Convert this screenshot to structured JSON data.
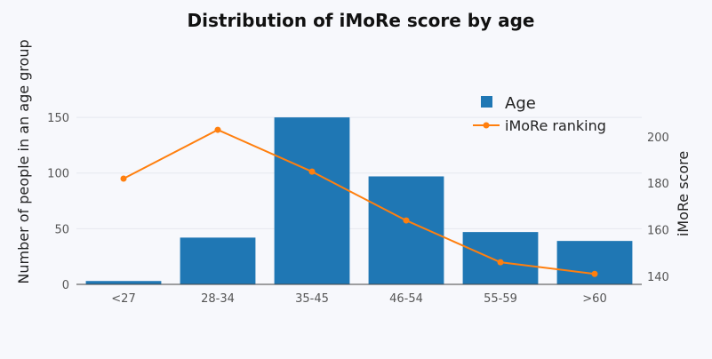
{
  "chart_data": {
    "type": "bar",
    "title": "Distribution of iMoRe score by age",
    "categories": [
      "<27",
      "28-34",
      "35-45",
      "46-54",
      "55-59",
      ">60"
    ],
    "series": [
      {
        "name": "Age",
        "type": "bar",
        "axis": "left",
        "color": "#1f77b4",
        "values": [
          3,
          42,
          150,
          97,
          47,
          39
        ]
      },
      {
        "name": "iMoRe ranking",
        "type": "line",
        "axis": "right",
        "color": "#ff7f0e",
        "values": [
          182,
          203,
          185,
          164,
          146,
          141
        ]
      }
    ],
    "ylabel": "Number of people in an age group",
    "y2label": "iMoRe score",
    "ylim": [
      0,
      190
    ],
    "y2lim": [
      136.5,
      227.5
    ],
    "yticks": [
      0,
      50,
      100,
      150
    ],
    "y2ticks": [
      140,
      160,
      180,
      200
    ],
    "grid": true,
    "legend_position": "top-right"
  }
}
